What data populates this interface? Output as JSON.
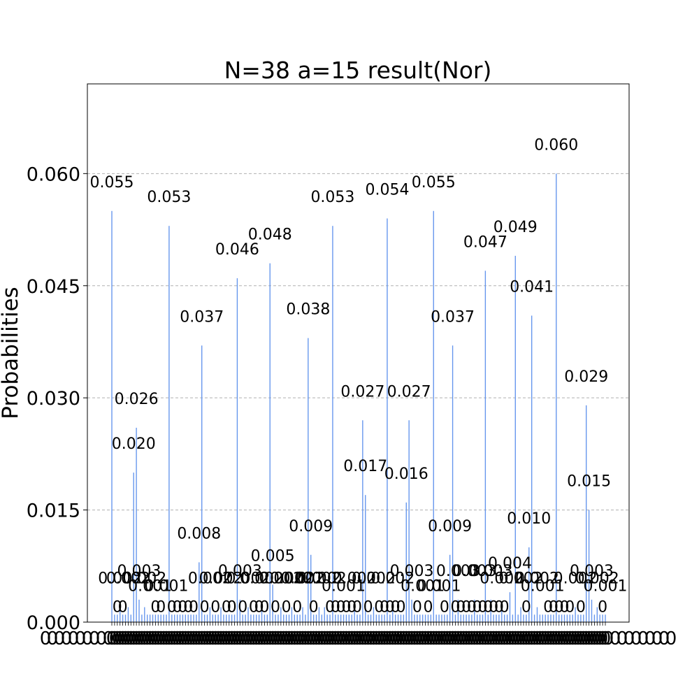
{
  "chart_data": {
    "type": "bar",
    "title": "N=38 a=15 result(Nor)",
    "ylabel": "Probabilities",
    "xlabel": "",
    "ylim": [
      0,
      0.072
    ],
    "yticks": [
      "0.000",
      "0.015",
      "0.030",
      "0.045",
      "0.060"
    ],
    "ytick_values": [
      0,
      0.015,
      0.03,
      0.045,
      0.06
    ],
    "grid": "horizontal dashed",
    "bar_color": "#6495ed",
    "background_value": 0.001,
    "peaks": [
      {
        "index": 0,
        "value": 0.055,
        "label": "0.055"
      },
      {
        "index": 8,
        "value": 0.02,
        "label": "0.020"
      },
      {
        "index": 9,
        "value": 0.026,
        "label": "0.026"
      },
      {
        "index": 10,
        "value": 0.003,
        "label": "0.003"
      },
      {
        "index": 3,
        "value": 0.002,
        "label": "0.002"
      },
      {
        "index": 6,
        "value": 0.002,
        "label": "0.002"
      },
      {
        "index": 12,
        "value": 0.002,
        "label": "0.002"
      },
      {
        "index": 14,
        "value": 0.001,
        "label": "0.001"
      },
      {
        "index": 20,
        "value": 0.001,
        "label": "0.001"
      },
      {
        "index": 21,
        "value": 0.053,
        "label": "0.053"
      },
      {
        "index": 32,
        "value": 0.008,
        "label": "0.008"
      },
      {
        "index": 33,
        "value": 0.037,
        "label": "0.037"
      },
      {
        "index": 36,
        "value": 0.002,
        "label": "0.002"
      },
      {
        "index": 40,
        "value": 0.002,
        "label": "0.002"
      },
      {
        "index": 46,
        "value": 0.046,
        "label": "0.046"
      },
      {
        "index": 47,
        "value": 0.003,
        "label": "0.003"
      },
      {
        "index": 50,
        "value": 0.002,
        "label": "0.002"
      },
      {
        "index": 55,
        "value": 0.002,
        "label": "0.002"
      },
      {
        "index": 58,
        "value": 0.048,
        "label": "0.048"
      },
      {
        "index": 59,
        "value": 0.005,
        "label": "0.005"
      },
      {
        "index": 62,
        "value": 0.002,
        "label": "0.002"
      },
      {
        "index": 66,
        "value": 0.002,
        "label": "0.002"
      },
      {
        "index": 70,
        "value": 0.002,
        "label": "0.002"
      },
      {
        "index": 72,
        "value": 0.038,
        "label": "0.038"
      },
      {
        "index": 73,
        "value": 0.009,
        "label": "0.009"
      },
      {
        "index": 76,
        "value": 0.002,
        "label": "0.002"
      },
      {
        "index": 78,
        "value": 0.002,
        "label": "0.002"
      },
      {
        "index": 81,
        "value": 0.053,
        "label": "0.053"
      },
      {
        "index": 85,
        "value": 0.001,
        "label": "0.001"
      },
      {
        "index": 89,
        "value": 0.002,
        "label": "0.002"
      },
      {
        "index": 92,
        "value": 0.027,
        "label": "0.027"
      },
      {
        "index": 93,
        "value": 0.017,
        "label": "0.017"
      },
      {
        "index": 96,
        "value": 0.002,
        "label": "0.002"
      },
      {
        "index": 101,
        "value": 0.054,
        "label": "0.054"
      },
      {
        "index": 103,
        "value": 0.002,
        "label": "0.002"
      },
      {
        "index": 108,
        "value": 0.016,
        "label": "0.016"
      },
      {
        "index": 109,
        "value": 0.027,
        "label": "0.027"
      },
      {
        "index": 110,
        "value": 0.003,
        "label": "0.003"
      },
      {
        "index": 114,
        "value": 0.001,
        "label": "0.001"
      },
      {
        "index": 118,
        "value": 0.055,
        "label": "0.055"
      },
      {
        "index": 120,
        "value": 0.001,
        "label": "0.001"
      },
      {
        "index": 124,
        "value": 0.009,
        "label": "0.009"
      },
      {
        "index": 125,
        "value": 0.037,
        "label": "0.037"
      },
      {
        "index": 127,
        "value": 0.003,
        "label": "0.003"
      },
      {
        "index": 133,
        "value": 0.003,
        "label": "0.003"
      },
      {
        "index": 137,
        "value": 0.047,
        "label": "0.047"
      },
      {
        "index": 139,
        "value": 0.003,
        "label": "0.003"
      },
      {
        "index": 143,
        "value": 0.002,
        "label": "0.002"
      },
      {
        "index": 146,
        "value": 0.004,
        "label": "0.004"
      },
      {
        "index": 148,
        "value": 0.049,
        "label": "0.049"
      },
      {
        "index": 150,
        "value": 0.002,
        "label": "0.002"
      },
      {
        "index": 153,
        "value": 0.01,
        "label": "0.010"
      },
      {
        "index": 154,
        "value": 0.041,
        "label": "0.041"
      },
      {
        "index": 156,
        "value": 0.002,
        "label": "0.002"
      },
      {
        "index": 158,
        "value": 0.001,
        "label": "0.001"
      },
      {
        "index": 163,
        "value": 0.06,
        "label": "0.060"
      },
      {
        "index": 170,
        "value": 0.002,
        "label": "0.002"
      },
      {
        "index": 174,
        "value": 0.029,
        "label": "0.029"
      },
      {
        "index": 175,
        "value": 0.015,
        "label": "0.015"
      },
      {
        "index": 176,
        "value": 0.003,
        "label": "0.003"
      },
      {
        "index": 178,
        "value": 0.002,
        "label": "0.002"
      },
      {
        "index": 181,
        "value": 0.001,
        "label": "0.001"
      }
    ],
    "bar_count": 182
  }
}
